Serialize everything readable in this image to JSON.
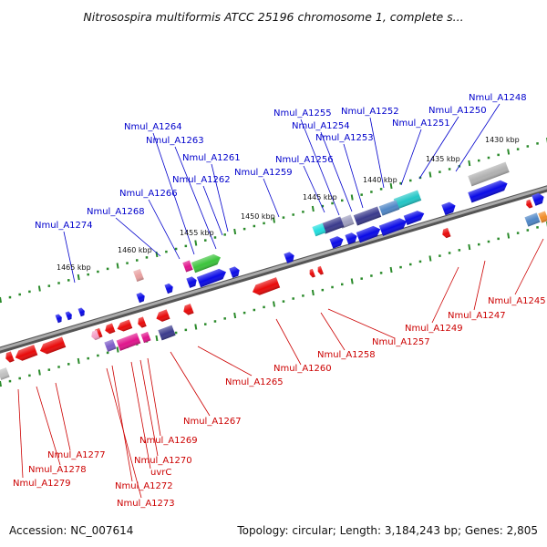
{
  "title": "Nitrosospira multiformis ATCC 25196 chromosome 1, complete s...",
  "footer": {
    "accession": "Accession: NC_007614",
    "summary": "Topology: circular; Length: 3,184,243 bp; Genes: 2,805"
  },
  "colors": {
    "forward_label": "#0000cc",
    "reverse_label": "#cc0000",
    "backbone": "#777777",
    "tick": "#2a8a2a"
  },
  "kbp_ticks": [
    "1430 kbp",
    "1435 kbp",
    "1440 kbp",
    "1445 kbp",
    "1450 kbp",
    "1455 kbp",
    "1460 kbp",
    "1465 kbp"
  ],
  "forward_labels": [
    "Nmul_A1248",
    "Nmul_A1250",
    "Nmul_A1251",
    "Nmul_A1252",
    "Nmul_A1253",
    "Nmul_A1254",
    "Nmul_A1255",
    "Nmul_A1256",
    "Nmul_A1259",
    "Nmul_A1261",
    "Nmul_A1262",
    "Nmul_A1263",
    "Nmul_A1264",
    "Nmul_A1266",
    "Nmul_A1268",
    "Nmul_A1274"
  ],
  "reverse_labels": [
    "Nmul_A1245",
    "Nmul_A1247",
    "Nmul_A1249",
    "Nmul_A1257",
    "Nmul_A1258",
    "Nmul_A1260",
    "Nmul_A1265",
    "Nmul_A1267",
    "Nmul_A1269",
    "Nmul_A1270",
    "uvrC",
    "Nmul_A1272",
    "Nmul_A1273",
    "Nmul_A1277",
    "Nmul_A1278",
    "Nmul_A1279"
  ]
}
